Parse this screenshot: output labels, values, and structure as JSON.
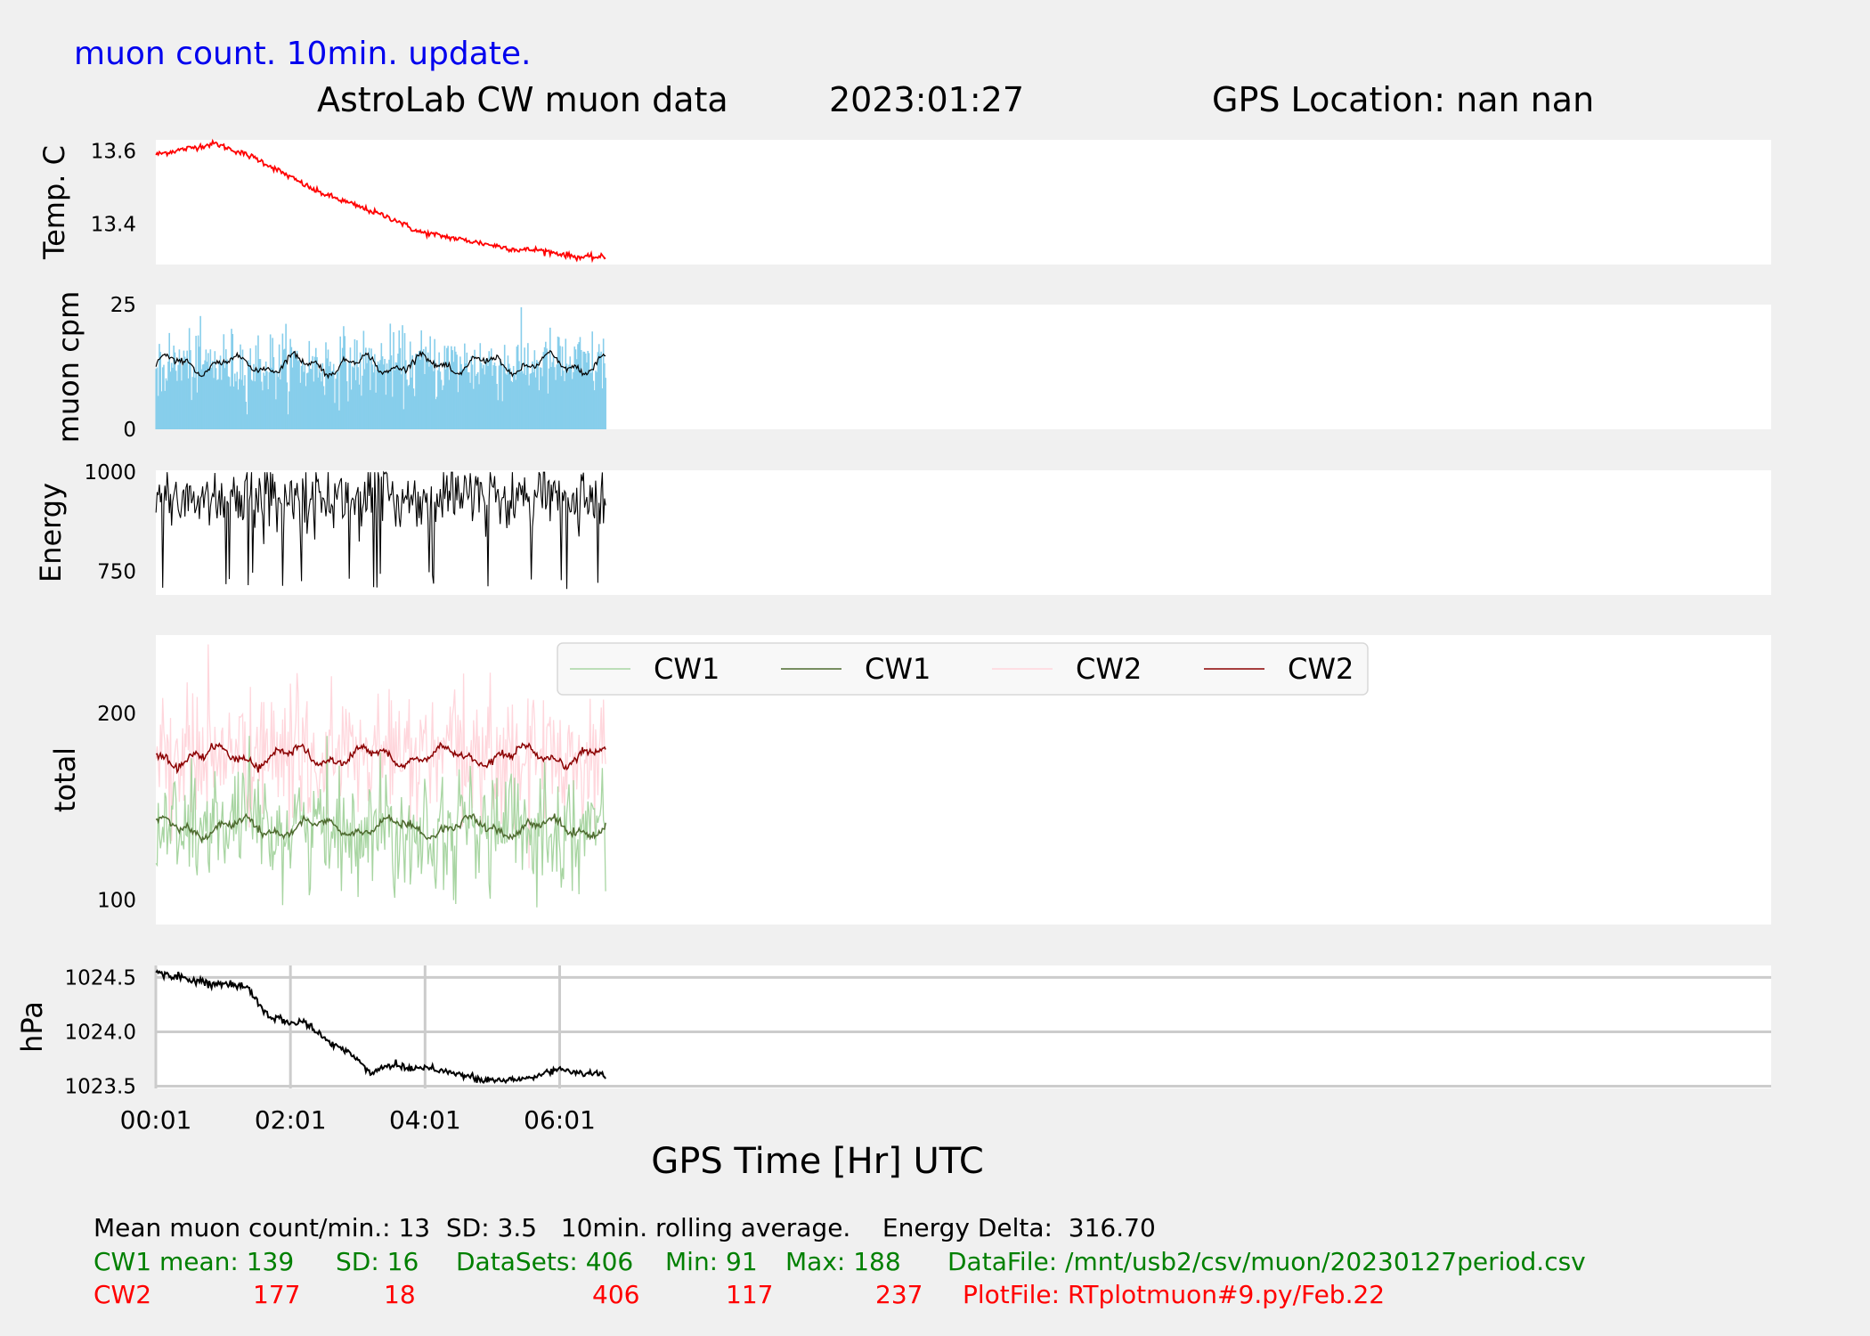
{
  "header": {
    "subtitle_left": "muon count.  10min. update.",
    "title_main": "AstroLab CW muon data",
    "title_date": "2023:01:27",
    "title_gps": "GPS Location: nan   nan"
  },
  "chart_data": [
    {
      "type": "line",
      "ylabel": "Temp. C",
      "ylim": [
        13.29,
        13.63
      ],
      "yticks": [
        13.4,
        13.6
      ],
      "ytick_labels": [
        "13.4",
        "13.6"
      ],
      "xlim": [
        0.0167,
        24.0167
      ],
      "series": [
        {
          "color": "#ff0000",
          "x": [
            0.02,
            0.3,
            0.6,
            0.9,
            1.2,
            1.5,
            1.8,
            2.1,
            2.4,
            2.7,
            3.0,
            3.3,
            3.6,
            3.9,
            4.2,
            4.5,
            4.8,
            5.1,
            5.4,
            5.7,
            6.0,
            6.3,
            6.6,
            6.7
          ],
          "y": [
            13.59,
            13.6,
            13.61,
            13.62,
            13.6,
            13.58,
            13.55,
            13.52,
            13.49,
            13.47,
            13.45,
            13.43,
            13.41,
            13.38,
            13.37,
            13.36,
            13.35,
            13.34,
            13.33,
            13.33,
            13.32,
            13.31,
            13.31,
            13.31
          ]
        }
      ]
    },
    {
      "type": "bar+line",
      "ylabel": "muon cpm",
      "ylim": [
        0,
        25
      ],
      "yticks": [
        0,
        25
      ],
      "ytick_labels": [
        "0",
        "25"
      ],
      "xlim": [
        0.0167,
        24.0167
      ],
      "series": [
        {
          "name": "",
          "kind": "bar",
          "color": "#87ceeb",
          "mean": 13,
          "sd": 3.5,
          "max": 25
        },
        {
          "name": "",
          "kind": "line",
          "color": "#000000",
          "mean": 13,
          "band": [
            11,
            15
          ]
        }
      ]
    },
    {
      "type": "line",
      "ylabel": "Energy",
      "ylim": [
        690,
        1005
      ],
      "yticks": [
        750,
        1000
      ],
      "ytick_labels": [
        "750",
        "1000"
      ],
      "xlim": [
        0.0167,
        24.0167
      ],
      "series": [
        {
          "color": "#000000",
          "range": [
            695,
            1000
          ],
          "typical": [
            830,
            990
          ]
        }
      ]
    },
    {
      "type": "line",
      "ylabel": "total",
      "ylim": [
        87,
        242
      ],
      "yticks": [
        100,
        200
      ],
      "ytick_labels": [
        "100",
        "200"
      ],
      "xlim": [
        0.0167,
        24.0167
      ],
      "legend": {
        "position": "top-center",
        "entries": [
          "CW1",
          "CW1",
          "CW2",
          "CW2"
        ]
      },
      "series": [
        {
          "name": "CW1",
          "color": "#a8d5a2",
          "kind": "raw",
          "mean": 139,
          "sd": 16,
          "min": 91,
          "max": 188
        },
        {
          "name": "CW1",
          "color": "#4e6b2f",
          "kind": "avg",
          "mean": 139
        },
        {
          "name": "CW2",
          "color": "#ffd6dc",
          "kind": "raw",
          "mean": 177,
          "sd": 18,
          "min": 117,
          "max": 237
        },
        {
          "name": "CW2",
          "color": "#8b0000",
          "kind": "avg",
          "mean": 177
        }
      ]
    },
    {
      "type": "line",
      "ylabel": "hPa",
      "ylim": [
        1023.48,
        1024.61
      ],
      "yticks": [
        1023.5,
        1024.0,
        1024.5
      ],
      "ytick_labels": [
        "1023.5",
        "1024.0",
        "1024.5"
      ],
      "xlim": [
        0.0167,
        24.0167
      ],
      "grid": true,
      "xticks": [
        0.0167,
        2.0167,
        4.0167,
        6.0167
      ],
      "xtick_labels": [
        "00:01",
        "02:01",
        "04:01",
        "06:01"
      ],
      "xlabel": "GPS Time  [Hr] UTC",
      "series": [
        {
          "color": "#000000",
          "x": [
            0.02,
            0.4,
            0.8,
            1.2,
            1.4,
            1.6,
            1.8,
            2.0,
            2.2,
            2.4,
            2.6,
            2.8,
            3.0,
            3.2,
            3.4,
            3.6,
            3.8,
            4.0,
            4.4,
            4.8,
            5.2,
            5.6,
            6.0,
            6.4,
            6.7
          ],
          "y": [
            1024.55,
            1024.5,
            1024.45,
            1024.42,
            1024.4,
            1024.2,
            1024.12,
            1024.08,
            1024.1,
            1024.0,
            1023.9,
            1023.85,
            1023.75,
            1023.62,
            1023.68,
            1023.7,
            1023.66,
            1023.68,
            1023.63,
            1023.56,
            1023.55,
            1023.58,
            1023.66,
            1023.62,
            1023.6
          ]
        }
      ]
    }
  ],
  "stats": {
    "line1": "Mean muon count/min.: 13  SD: 3.5   10min. rolling average.    Energy Delta:  316.70",
    "cw1_label": "CW1 mean: 139",
    "cw1_sd": "SD: 16",
    "cw1_datasets": "DataSets: 406",
    "cw1_min": "Min: 91",
    "cw1_max": "Max: 188",
    "cw1_file": "DataFile: /mnt/usb2/csv/muon/20230127period.csv",
    "cw2_label": "CW2",
    "cw2_mean": "177",
    "cw2_sd": "18",
    "cw2_datasets": "406",
    "cw2_min": "117",
    "cw2_max": "237",
    "cw2_file": "PlotFile: RTplotmuon#9.py/Feb.22"
  }
}
